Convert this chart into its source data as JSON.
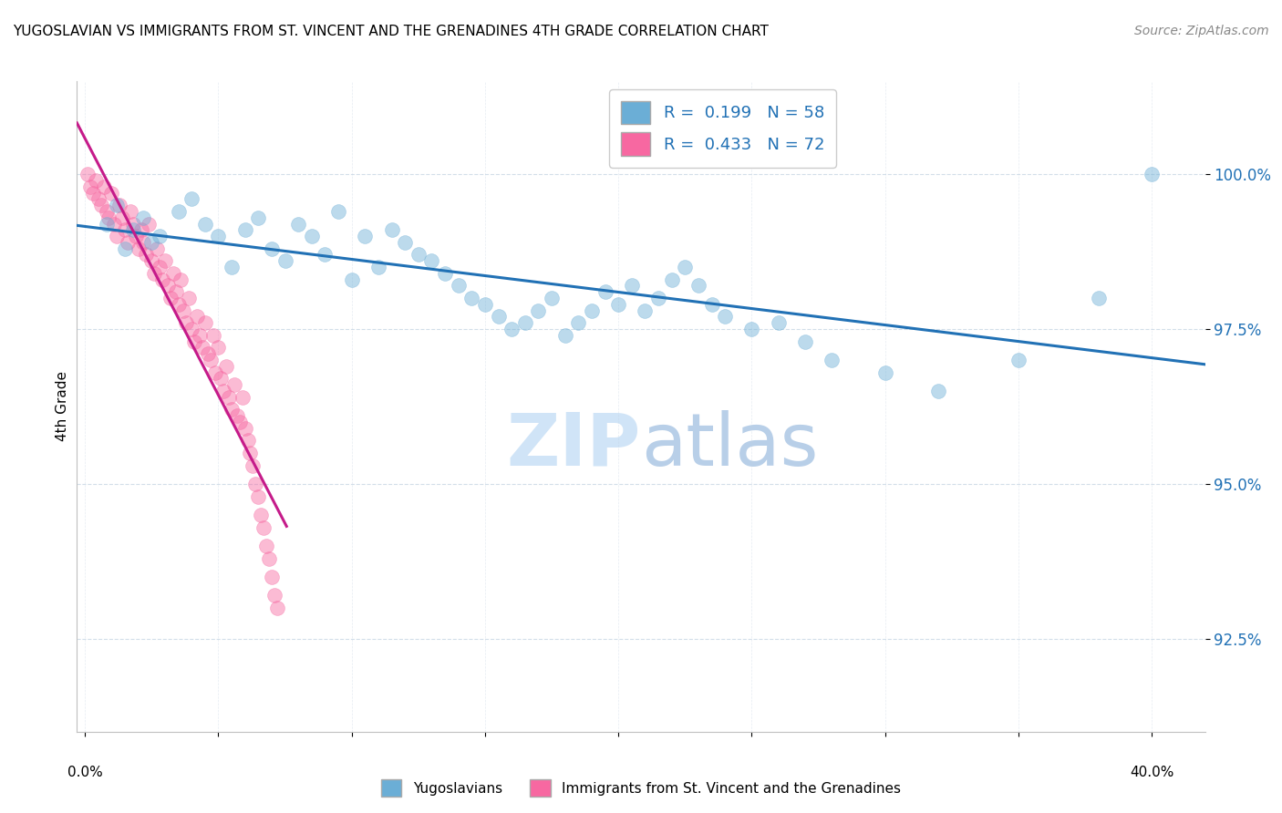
{
  "title": "YUGOSLAVIAN VS IMMIGRANTS FROM ST. VINCENT AND THE GRENADINES 4TH GRADE CORRELATION CHART",
  "source": "Source: ZipAtlas.com",
  "ylabel_label": "4th Grade",
  "ytick_values": [
    92.5,
    95.0,
    97.5,
    100.0
  ],
  "ylim": [
    91.0,
    101.5
  ],
  "xlim": [
    -0.003,
    0.42
  ],
  "legend_R_blue": "0.199",
  "legend_N_blue": "58",
  "legend_R_pink": "0.433",
  "legend_N_pink": "72",
  "blue_color": "#6baed6",
  "pink_color": "#f768a1",
  "line_blue_color": "#2171b5",
  "line_pink_color": "#c51b8a",
  "watermark_zip": "ZIP",
  "watermark_atlas": "atlas",
  "watermark_color": "#d0e4f7",
  "blue_scatter_x": [
    0.008,
    0.015,
    0.012,
    0.018,
    0.025,
    0.022,
    0.028,
    0.035,
    0.04,
    0.045,
    0.05,
    0.055,
    0.06,
    0.065,
    0.07,
    0.075,
    0.08,
    0.085,
    0.09,
    0.095,
    0.1,
    0.105,
    0.11,
    0.115,
    0.12,
    0.125,
    0.13,
    0.135,
    0.14,
    0.145,
    0.15,
    0.155,
    0.16,
    0.165,
    0.17,
    0.175,
    0.18,
    0.185,
    0.19,
    0.195,
    0.2,
    0.205,
    0.21,
    0.215,
    0.22,
    0.225,
    0.23,
    0.235,
    0.24,
    0.25,
    0.26,
    0.27,
    0.28,
    0.3,
    0.32,
    0.35,
    0.38,
    0.4
  ],
  "blue_scatter_y": [
    99.2,
    98.8,
    99.5,
    99.1,
    98.9,
    99.3,
    99.0,
    99.4,
    99.6,
    99.2,
    99.0,
    98.5,
    99.1,
    99.3,
    98.8,
    98.6,
    99.2,
    99.0,
    98.7,
    99.4,
    98.3,
    99.0,
    98.5,
    99.1,
    98.9,
    98.7,
    98.6,
    98.4,
    98.2,
    98.0,
    97.9,
    97.7,
    97.5,
    97.6,
    97.8,
    98.0,
    97.4,
    97.6,
    97.8,
    98.1,
    97.9,
    98.2,
    97.8,
    98.0,
    98.3,
    98.5,
    98.2,
    97.9,
    97.7,
    97.5,
    97.6,
    97.3,
    97.0,
    96.8,
    96.5,
    97.0,
    98.0,
    100.0
  ],
  "pink_scatter_x": [
    0.001,
    0.002,
    0.003,
    0.004,
    0.005,
    0.006,
    0.007,
    0.008,
    0.009,
    0.01,
    0.011,
    0.012,
    0.013,
    0.014,
    0.015,
    0.016,
    0.017,
    0.018,
    0.019,
    0.02,
    0.021,
    0.022,
    0.023,
    0.024,
    0.025,
    0.026,
    0.027,
    0.028,
    0.029,
    0.03,
    0.031,
    0.032,
    0.033,
    0.034,
    0.035,
    0.036,
    0.037,
    0.038,
    0.039,
    0.04,
    0.041,
    0.042,
    0.043,
    0.044,
    0.045,
    0.046,
    0.047,
    0.048,
    0.049,
    0.05,
    0.051,
    0.052,
    0.053,
    0.054,
    0.055,
    0.056,
    0.057,
    0.058,
    0.059,
    0.06,
    0.061,
    0.062,
    0.063,
    0.064,
    0.065,
    0.066,
    0.067,
    0.068,
    0.069,
    0.07,
    0.071,
    0.072
  ],
  "pink_scatter_y": [
    100.0,
    99.8,
    99.7,
    99.9,
    99.6,
    99.5,
    99.8,
    99.4,
    99.3,
    99.7,
    99.2,
    99.0,
    99.5,
    99.3,
    99.1,
    98.9,
    99.4,
    99.2,
    99.0,
    98.8,
    99.1,
    98.9,
    98.7,
    99.2,
    98.6,
    98.4,
    98.8,
    98.5,
    98.3,
    98.6,
    98.2,
    98.0,
    98.4,
    98.1,
    97.9,
    98.3,
    97.8,
    97.6,
    98.0,
    97.5,
    97.3,
    97.7,
    97.4,
    97.2,
    97.6,
    97.1,
    97.0,
    97.4,
    96.8,
    97.2,
    96.7,
    96.5,
    96.9,
    96.4,
    96.2,
    96.6,
    96.1,
    96.0,
    96.4,
    95.9,
    95.7,
    95.5,
    95.3,
    95.0,
    94.8,
    94.5,
    94.3,
    94.0,
    93.8,
    93.5,
    93.2,
    93.0
  ]
}
